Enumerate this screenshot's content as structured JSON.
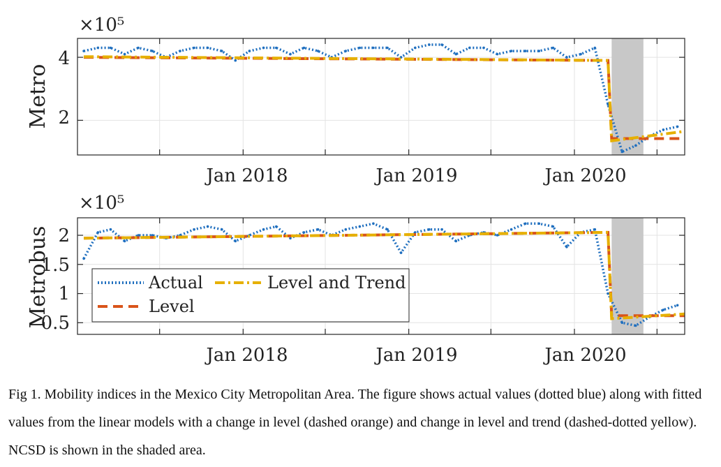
{
  "chart_data": [
    {
      "type": "line",
      "ylabel": "Metro",
      "y_multiplier": "×10⁵",
      "x_tick_labels": [
        "Jan 2018",
        "Jan 2019",
        "Jan 2020"
      ],
      "y_tick_labels": [
        "2",
        "4"
      ],
      "ylim": [
        0.9,
        4.6
      ],
      "grid": true,
      "shaded_period": {
        "start": "2020-03-23",
        "end": "2020-06-01"
      },
      "series": [
        {
          "name": "Actual",
          "style": "dotted",
          "color": "#1f6fbf",
          "x": [
            "2017-01",
            "2017-02",
            "2017-03",
            "2017-04",
            "2017-05",
            "2017-06",
            "2017-07",
            "2017-08",
            "2017-09",
            "2017-10",
            "2017-11",
            "2017-12",
            "2018-01",
            "2018-02",
            "2018-03",
            "2018-04",
            "2018-05",
            "2018-06",
            "2018-07",
            "2018-08",
            "2018-09",
            "2018-10",
            "2018-11",
            "2018-12",
            "2019-01",
            "2019-02",
            "2019-03",
            "2019-04",
            "2019-05",
            "2019-06",
            "2019-07",
            "2019-08",
            "2019-09",
            "2019-10",
            "2019-11",
            "2019-12",
            "2020-01",
            "2020-02",
            "2020-03",
            "2020-04",
            "2020-05",
            "2020-06",
            "2020-07",
            "2020-08"
          ],
          "y": [
            4.2,
            4.3,
            4.3,
            4.1,
            4.3,
            4.2,
            4.0,
            4.2,
            4.3,
            4.3,
            4.2,
            3.9,
            4.2,
            4.3,
            4.3,
            4.1,
            4.3,
            4.2,
            4.0,
            4.2,
            4.3,
            4.3,
            4.3,
            4.0,
            4.3,
            4.4,
            4.4,
            4.1,
            4.3,
            4.3,
            4.1,
            4.2,
            4.2,
            4.2,
            4.3,
            4.0,
            4.1,
            4.3,
            2.5,
            1.0,
            1.2,
            1.5,
            1.7,
            1.8
          ]
        },
        {
          "name": "Level and Trend",
          "style": "dashdot",
          "color": "#e6b000",
          "x": [
            "2017-01",
            "2020-03-15",
            "2020-03-23",
            "2020-08-31"
          ],
          "y": [
            4.02,
            3.9,
            1.35,
            1.65
          ]
        },
        {
          "name": "Level",
          "style": "dashed",
          "color": "#d9541a",
          "x": [
            "2017-01",
            "2020-03-15",
            "2020-03-23",
            "2020-08-31"
          ],
          "y": [
            4.0,
            3.9,
            1.42,
            1.42
          ]
        }
      ]
    },
    {
      "type": "line",
      "ylabel": "Metrobus",
      "y_multiplier": "×10⁵",
      "x_tick_labels": [
        "Jan 2018",
        "Jan 2019",
        "Jan 2020"
      ],
      "y_tick_labels": [
        "0.5",
        "1",
        "1.5",
        "2"
      ],
      "ylim": [
        0.3,
        2.3
      ],
      "grid": true,
      "legend": "bottom-left",
      "shaded_period": {
        "start": "2020-03-23",
        "end": "2020-06-01"
      },
      "series": [
        {
          "name": "Actual",
          "style": "dotted",
          "color": "#1f6fbf",
          "x": [
            "2017-01",
            "2017-02",
            "2017-03",
            "2017-04",
            "2017-05",
            "2017-06",
            "2017-07",
            "2017-08",
            "2017-09",
            "2017-10",
            "2017-11",
            "2017-12",
            "2018-01",
            "2018-02",
            "2018-03",
            "2018-04",
            "2018-05",
            "2018-06",
            "2018-07",
            "2018-08",
            "2018-09",
            "2018-10",
            "2018-11",
            "2018-12",
            "2019-01",
            "2019-02",
            "2019-03",
            "2019-04",
            "2019-05",
            "2019-06",
            "2019-07",
            "2019-08",
            "2019-09",
            "2019-10",
            "2019-11",
            "2019-12",
            "2020-01",
            "2020-02",
            "2020-03",
            "2020-04",
            "2020-05",
            "2020-06",
            "2020-07",
            "2020-08"
          ],
          "y": [
            1.6,
            2.05,
            2.1,
            1.9,
            2.0,
            2.0,
            1.95,
            2.0,
            2.1,
            2.15,
            2.1,
            1.9,
            2.0,
            2.1,
            2.15,
            1.95,
            2.05,
            2.1,
            2.0,
            2.1,
            2.15,
            2.2,
            2.1,
            1.7,
            2.05,
            2.1,
            2.1,
            1.9,
            2.0,
            2.05,
            2.0,
            2.1,
            2.2,
            2.2,
            2.15,
            1.8,
            2.05,
            2.1,
            1.0,
            0.5,
            0.45,
            0.6,
            0.72,
            0.8
          ]
        },
        {
          "name": "Level and Trend",
          "style": "dashdot",
          "color": "#e6b000",
          "x": [
            "2017-01",
            "2020-03-15",
            "2020-03-23",
            "2020-08-31"
          ],
          "y": [
            1.95,
            2.05,
            0.57,
            0.65
          ]
        },
        {
          "name": "Level",
          "style": "dashed",
          "color": "#d9541a",
          "x": [
            "2017-01",
            "2020-03-15",
            "2020-03-23",
            "2020-08-31"
          ],
          "y": [
            1.95,
            2.05,
            0.62,
            0.62
          ]
        }
      ]
    }
  ],
  "caption": "Fig 1. Mobility indices in the Mexico City Metropolitan Area. The figure shows actual values (dotted blue) along with fitted values from the linear models with a change in level (dashed orange) and change in level and trend (dashed-dotted yellow). NCSD is shown in the shaded area."
}
